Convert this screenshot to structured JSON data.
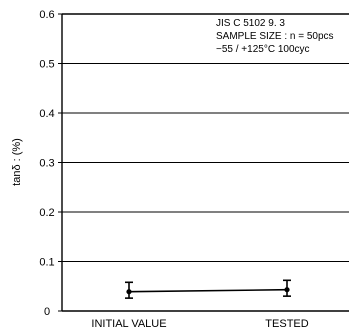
{
  "chart_data": {
    "type": "line",
    "title": "",
    "xlabel": "",
    "ylabel": "tanδ : (%)",
    "categories": [
      "INITIAL VALUE",
      "TESTED"
    ],
    "ylim": [
      0,
      0.6
    ],
    "yticks": [
      0,
      0.1,
      0.2,
      0.3,
      0.4,
      0.5,
      0.6
    ],
    "ytick_labels": [
      "0",
      "0.1",
      "0.2",
      "0.3",
      "0.4",
      "0.5",
      "0.6"
    ],
    "grid": true,
    "series": [
      {
        "values": [
          0.039,
          0.043
        ],
        "error_low": [
          0.026,
          0.03
        ],
        "error_high": [
          0.058,
          0.062
        ],
        "color": "#000000"
      }
    ],
    "annotations": [
      "JIS C 5102 9. 3",
      "SAMPLE SIZE : n = 50pcs",
      "−55 / +125°C 100cyc"
    ]
  }
}
